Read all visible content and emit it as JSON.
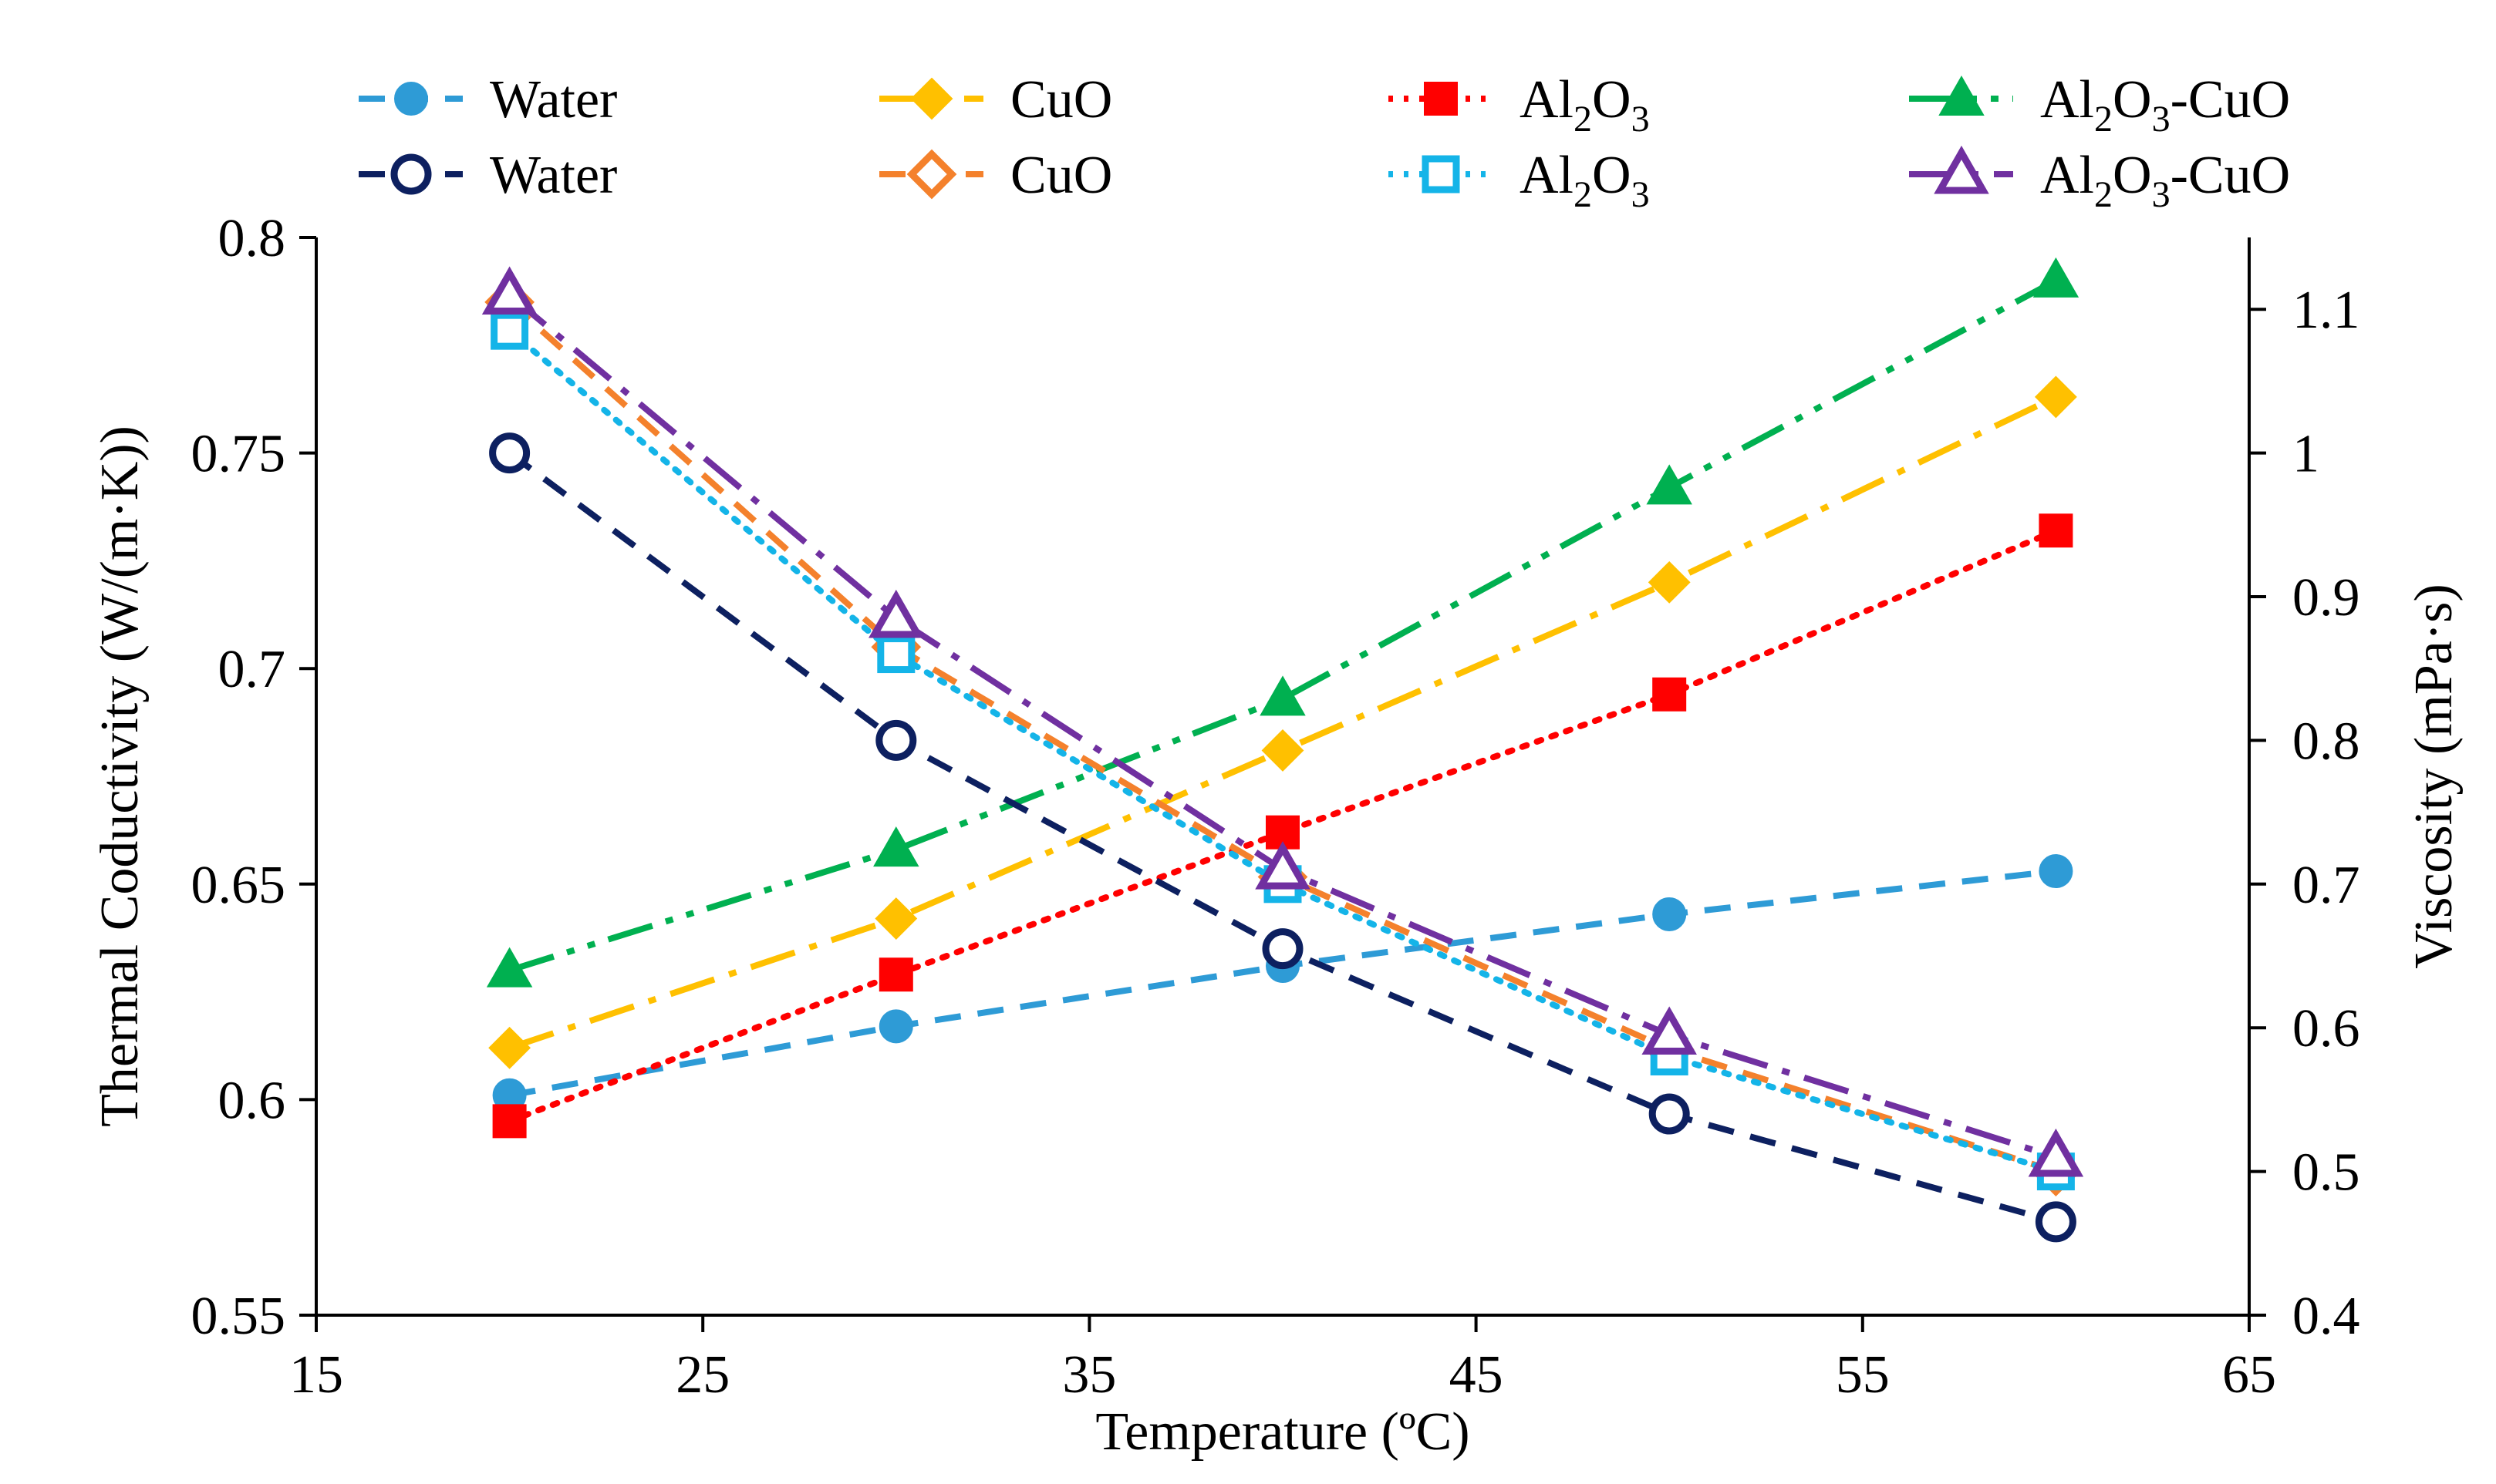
{
  "chart_data": {
    "type": "line",
    "xlabel": "Temperature (ºC)",
    "ylabel": "Thermal Coductivity (W/(m·K))",
    "y2label": "Viscosity (mPa·s)",
    "xlim": [
      15,
      65
    ],
    "ylim": [
      0.55,
      0.8
    ],
    "y2lim": [
      0.4,
      1.15
    ],
    "xticks": [
      "15",
      "25",
      "35",
      "45",
      "55",
      "65"
    ],
    "yticks": [
      "0.55",
      "0.6",
      "0.65",
      "0.7",
      "0.75",
      "0.8"
    ],
    "y2ticks": [
      "0.4",
      "0.5",
      "0.6",
      "0.7",
      "0.8",
      "0.9",
      "1",
      "1.1"
    ],
    "x": [
      20,
      30,
      40,
      50,
      60
    ],
    "series": [
      {
        "name": "Water",
        "axis": "left",
        "values": [
          0.601,
          0.617,
          0.631,
          0.643,
          0.653
        ],
        "color": "#2e9bd6",
        "marker": "circle-filled",
        "dash": "dash"
      },
      {
        "name": "CuO",
        "axis": "left",
        "values": [
          0.612,
          0.642,
          0.681,
          0.72,
          0.763
        ],
        "color": "#ffc000",
        "marker": "diamond-filled",
        "dash": "dashdot"
      },
      {
        "name": "Al2O3",
        "axis": "left",
        "values": [
          0.595,
          0.629,
          0.662,
          0.694,
          0.732
        ],
        "color": "#ff0000",
        "marker": "square-filled",
        "dash": "dot"
      },
      {
        "name": "Al2O3-CuO",
        "axis": "left",
        "values": [
          0.63,
          0.658,
          0.693,
          0.742,
          0.79
        ],
        "color": "#00b050",
        "marker": "triangle-filled",
        "dash": "dashdotdot"
      },
      {
        "name": "Water",
        "axis": "right",
        "values": [
          1.0,
          0.8,
          0.655,
          0.54,
          0.465
        ],
        "color": "#0d2060",
        "marker": "circle-open",
        "dash": "dash"
      },
      {
        "name": "CuO",
        "axis": "right",
        "values": [
          1.105,
          0.865,
          0.705,
          0.585,
          0.5
        ],
        "color": "#f4812c",
        "marker": "diamond-open",
        "dash": "dash"
      },
      {
        "name": "Al2O3",
        "axis": "right",
        "values": [
          1.085,
          0.86,
          0.7,
          0.58,
          0.5
        ],
        "color": "#14b4e8",
        "marker": "square-open",
        "dash": "dot"
      },
      {
        "name": "Al2O3-CuO",
        "axis": "right",
        "values": [
          1.11,
          0.885,
          0.71,
          0.595,
          0.51
        ],
        "color": "#7030a0",
        "marker": "triangle-open",
        "dash": "dashdot"
      }
    ],
    "legend": {
      "position": "top",
      "entries": [
        {
          "series": 0,
          "label": "Water"
        },
        {
          "series": 1,
          "label": "CuO"
        },
        {
          "series": 2,
          "label": "Al2O3",
          "base": "Al",
          "sub1": "2",
          "mid": "O",
          "sub2": "3",
          "tail": ""
        },
        {
          "series": 3,
          "label": "Al2O3-CuO",
          "base": "Al",
          "sub1": "2",
          "mid": "O",
          "sub2": "3",
          "tail": "-CuO"
        },
        {
          "series": 4,
          "label": "Water"
        },
        {
          "series": 5,
          "label": "CuO"
        },
        {
          "series": 6,
          "label": "Al2O3",
          "base": "Al",
          "sub1": "2",
          "mid": "O",
          "sub2": "3",
          "tail": ""
        },
        {
          "series": 7,
          "label": "Al2O3-CuO",
          "base": "Al",
          "sub1": "2",
          "mid": "O",
          "sub2": "3",
          "tail": "-CuO"
        }
      ]
    }
  }
}
